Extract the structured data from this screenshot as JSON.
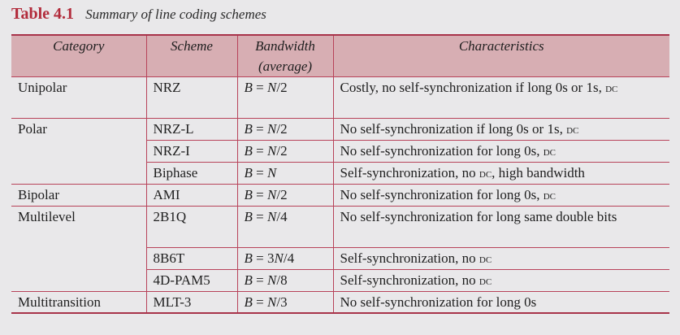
{
  "caption": {
    "label": "Table 4.1",
    "title": "Summary of line coding schemes"
  },
  "headers": {
    "category": "Category",
    "scheme": "Scheme",
    "bandwidth_line1": "Bandwidth",
    "bandwidth_line2": "(average)",
    "characteristics": "Characteristics"
  },
  "rows": [
    {
      "category": "Unipolar",
      "scheme": "NRZ",
      "bandwidth": "B = N/2",
      "characteristics": "Costly, no self-synchronization if long 0s or 1s, DC"
    },
    {
      "category": "Polar",
      "scheme": "NRZ-L",
      "bandwidth": "B = N/2",
      "characteristics": "No self-synchronization if long 0s or 1s, DC"
    },
    {
      "category": "",
      "scheme": "NRZ-I",
      "bandwidth": "B = N/2",
      "characteristics": "No self-synchronization for long 0s, DC"
    },
    {
      "category": "",
      "scheme": "Biphase",
      "bandwidth": "B = N",
      "characteristics": "Self-synchronization, no DC, high bandwidth"
    },
    {
      "category": "Bipolar",
      "scheme": "AMI",
      "bandwidth": "B = N/2",
      "characteristics": "No self-synchronization for long 0s, DC"
    },
    {
      "category": "Multilevel",
      "scheme": "2B1Q",
      "bandwidth": "B = N/4",
      "characteristics": "No self-synchronization for long same double bits"
    },
    {
      "category": "",
      "scheme": "8B6T",
      "bandwidth": "B = 3N/4",
      "characteristics": "Self-synchronization, no DC"
    },
    {
      "category": "",
      "scheme": "4D-PAM5",
      "bandwidth": "B = N/8",
      "characteristics": "Self-synchronization, no DC"
    },
    {
      "category": "Multitransition",
      "scheme": "MLT-3",
      "bandwidth": "B = N/3",
      "characteristics": "No self-synchronization for long 0s"
    }
  ]
}
